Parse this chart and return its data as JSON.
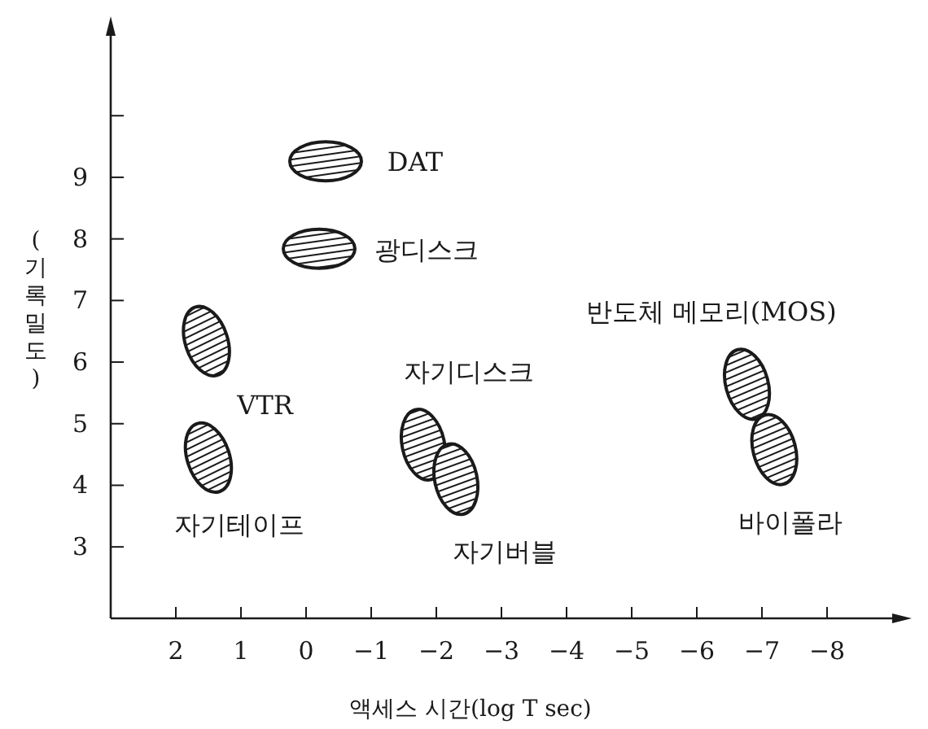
{
  "chart_data": {
    "type": "scatter",
    "xlabel": "액세스 시간(log T sec)",
    "ylabel": "(기록밀도)",
    "x": [
      -0.3,
      -0.2,
      1.53,
      1.5,
      -1.8,
      -2.3,
      -6.77,
      -7.19
    ],
    "series": [
      {
        "color": "#1a1a1a",
        "values": [
          9.26,
          7.84,
          6.34,
          4.45,
          4.66,
          4.1,
          5.64,
          4.58
        ]
      }
    ],
    "xlim": [
      3,
      -9.05
    ],
    "ylim": [
      1.84,
      11.35
    ],
    "xticks": [
      2,
      1,
      0,
      {
        "value": -1,
        "label": "−1"
      },
      {
        "value": -2,
        "label": "−2"
      },
      {
        "value": -3,
        "label": "−3"
      },
      {
        "value": -4,
        "label": "−4"
      },
      {
        "value": -5,
        "label": "−5"
      },
      {
        "value": -6,
        "label": "−6"
      },
      {
        "value": -7,
        "label": "−7"
      },
      {
        "value": -8,
        "label": "−8"
      }
    ],
    "yticks": [
      3,
      4,
      5,
      6,
      7,
      8,
      9,
      {
        "value": 10,
        "label": null
      }
    ],
    "grid": false,
    "annotations": [
      {
        "text": "DAT",
        "x": -0.3,
        "y": 9.26
      },
      {
        "text": "광디스크",
        "x": -0.2,
        "y": 7.84
      },
      {
        "text": "VTR",
        "x": 1.53,
        "y": 6.34
      },
      {
        "text": "자기테이프",
        "x": 1.5,
        "y": 4.45
      },
      {
        "text": "자기디스크",
        "x": -1.8,
        "y": 4.66
      },
      {
        "text": "자기버블",
        "x": -2.3,
        "y": 4.1
      },
      {
        "text": "반도체 메모리(MOS)",
        "x": -6.77,
        "y": 5.64
      },
      {
        "text": "바이폴라",
        "x": -7.19,
        "y": 4.58
      }
    ]
  }
}
